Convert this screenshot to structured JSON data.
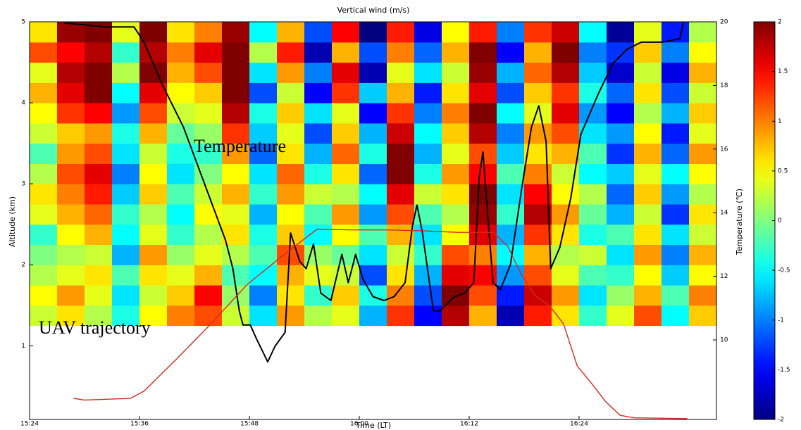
{
  "chart_data": {
    "type": "heatmap",
    "title": "Vertical wind (m/s)",
    "xlabel": "Time (LT)",
    "ylabel": "Altitude (km)",
    "y2label": "Temperature (℃)",
    "colormap": "jet",
    "xlim": [
      924,
      999
    ],
    "xticks": [
      {
        "value": 924,
        "label": "15:24"
      },
      {
        "value": 936,
        "label": "15:36"
      },
      {
        "value": 948,
        "label": "15:48"
      },
      {
        "value": 960,
        "label": "16:00"
      },
      {
        "value": 972,
        "label": "16:12"
      },
      {
        "value": 984,
        "label": "16:24"
      }
    ],
    "ylim": [
      0.09,
      5
    ],
    "yticks": [
      1,
      2,
      3,
      4,
      5
    ],
    "y2lim": [
      7.5,
      20
    ],
    "y2ticks": [
      10,
      12,
      14,
      16,
      18,
      20
    ],
    "clim": [
      -2,
      2
    ],
    "cticks": [
      -2,
      -1.5,
      -1,
      -0.5,
      0,
      0.5,
      1,
      1.5,
      2
    ],
    "x_edges": [
      924,
      927,
      930,
      933,
      936,
      939,
      942,
      945,
      948,
      951,
      954,
      957,
      960,
      963,
      966,
      969,
      972,
      975,
      978,
      981,
      984,
      987,
      990,
      993,
      996,
      999
    ],
    "y_edges": [
      1.25,
      1.5,
      1.75,
      2,
      2.25,
      2.5,
      2.75,
      3,
      3.25,
      3.5,
      3.75,
      4,
      4.25,
      4.5,
      4.75,
      5
    ],
    "z": [
      [
        0.3,
        0.5,
        0.2,
        0.0,
        -0.3,
        0.4,
        0.6,
        0.2,
        -0.2,
        0.3,
        0.5,
        0.8,
        0.4,
        1.2,
        0.6
      ],
      [
        0.6,
        0.9,
        0.4,
        0.2,
        0.5,
        0.8,
        1.0,
        1.2,
        0.9,
        0.7,
        1.3,
        1.6,
        1.8,
        1.5,
        1.9
      ],
      [
        0.2,
        0.4,
        0.6,
        0.3,
        0.8,
        1.1,
        1.4,
        1.6,
        1.2,
        0.9,
        1.5,
        2.0,
        2.0,
        1.8,
        2.0
      ],
      [
        -0.4,
        -0.6,
        -0.2,
        -0.8,
        -0.5,
        -0.3,
        -0.7,
        -1.0,
        -0.6,
        -0.4,
        -0.9,
        -0.5,
        0.2,
        -0.3,
        0.4
      ],
      [
        0.5,
        0.3,
        0.6,
        0.9,
        0.4,
        0.2,
        0.7,
        0.5,
        0.3,
        0.8,
        1.2,
        1.6,
        2.0,
        1.8,
        2.0
      ],
      [
        1.0,
        0.7,
        0.4,
        0.1,
        -0.3,
        -0.5,
        -0.2,
        -0.6,
        -0.4,
        -0.1,
        0.3,
        0.5,
        0.8,
        1.0,
        0.6
      ],
      [
        1.2,
        1.5,
        0.8,
        0.4,
        0.2,
        0.5,
        0.3,
        0.0,
        -0.3,
        0.1,
        0.4,
        0.7,
        1.2,
        1.6,
        1.0
      ],
      [
        0.3,
        0.1,
        -0.2,
        0.2,
        0.6,
        0.4,
        0.8,
        0.5,
        0.9,
        1.3,
        1.8,
        2.0,
        2.0,
        2.0,
        1.9
      ],
      [
        -0.6,
        -1.0,
        -0.5,
        -0.2,
        -0.4,
        -0.8,
        -0.3,
        -0.6,
        -1.1,
        -0.7,
        -0.4,
        -1.2,
        -0.6,
        0.2,
        -0.5
      ],
      [
        0.9,
        0.6,
        0.8,
        1.2,
        0.7,
        0.5,
        0.9,
        1.1,
        0.6,
        0.4,
        0.7,
        0.3,
        0.9,
        1.4,
        0.8
      ],
      [
        0.2,
        -0.3,
        0.4,
        0.1,
        -0.5,
        -0.2,
        0.3,
        -0.4,
        -0.8,
        -1.2,
        -0.6,
        -1.5,
        -1.0,
        -1.8,
        -1.2
      ],
      [
        0.4,
        0.7,
        0.3,
        -0.1,
        0.5,
        0.9,
        0.2,
        0.6,
        1.1,
        0.7,
        0.4,
        1.3,
        1.6,
        0.8,
        1.5
      ],
      [
        -0.8,
        -0.4,
        -1.2,
        -0.6,
        -0.2,
        -0.9,
        -0.5,
        -1.1,
        -0.4,
        -0.8,
        -1.5,
        -0.7,
        -1.8,
        -1.2,
        -2.0
      ],
      [
        1.3,
        1.0,
        0.6,
        0.3,
        0.8,
        1.2,
        1.6,
        2.0,
        2.0,
        1.7,
        1.3,
        0.8,
        0.4,
        1.0,
        1.4
      ],
      [
        -1.5,
        -1.2,
        -0.8,
        -0.3,
        -0.6,
        -0.2,
        0.3,
        -0.4,
        -0.8,
        -0.5,
        -1.0,
        -1.4,
        -0.6,
        -1.1,
        -1.6
      ],
      [
        1.8,
        2.0,
        1.6,
        1.2,
        0.5,
        0.2,
        0.6,
        0.9,
        0.4,
        0.7,
        1.0,
        0.6,
        0.3,
        0.8,
        0.5
      ],
      [
        0.8,
        1.2,
        1.5,
        1.0,
        1.6,
        1.9,
        2.0,
        1.5,
        1.2,
        1.8,
        2.0,
        1.6,
        1.9,
        2.0,
        1.4
      ],
      [
        -1.8,
        -1.4,
        -0.9,
        -0.5,
        -0.8,
        -0.3,
        -0.6,
        -0.2,
        -0.7,
        -1.0,
        -0.5,
        -1.2,
        -0.8,
        -1.5,
        -1.0
      ],
      [
        1.4,
        1.7,
        1.2,
        0.8,
        1.3,
        1.8,
        1.5,
        1.0,
        0.6,
        0.9,
        0.4,
        0.7,
        1.1,
        0.8,
        1.3
      ],
      [
        0.6,
        0.9,
        0.4,
        0.2,
        0.6,
        0.9,
        0.5,
        0.3,
        0.8,
        1.2,
        1.6,
        1.3,
        1.8,
        2.0,
        1.7
      ],
      [
        -0.3,
        -0.6,
        -0.2,
        0.3,
        -0.4,
        -0.1,
        0.2,
        -0.5,
        -0.2,
        -0.6,
        -0.9,
        -0.4,
        -0.7,
        -1.0,
        -0.5
      ],
      [
        0.4,
        0.1,
        -0.3,
        -0.6,
        -0.2,
        -0.8,
        -1.1,
        -0.7,
        -1.3,
        -0.9,
        -1.5,
        -1.1,
        -1.7,
        -1.3,
        -1.9
      ],
      [
        1.2,
        0.8,
        0.5,
        0.9,
        0.6,
        0.3,
        0.7,
        0.4,
        0.8,
        0.5,
        0.2,
        0.6,
        0.3,
        0.7,
        0.4
      ],
      [
        -0.5,
        -0.2,
        -0.7,
        -1.0,
        -0.6,
        -1.3,
        -0.9,
        -0.5,
        -1.1,
        -1.4,
        -0.8,
        -1.2,
        -1.6,
        -1.0,
        -1.4
      ],
      [
        0.7,
        1.0,
        0.5,
        0.8,
        0.3,
        0.6,
        0.2,
        0.5,
        0.9,
        0.4,
        0.7,
        0.3,
        0.8,
        0.5,
        0.2
      ]
    ],
    "series": [
      {
        "name": "Temperature",
        "color": "#000000",
        "axis": "y2",
        "x": [
          927.8,
          932.3,
          935.4,
          936.5,
          938.5,
          940.8,
          943.1,
          945.4,
          946.2,
          946.9,
          947.3,
          948.1,
          948.8,
          950.0,
          950.8,
          951.9,
          952.5,
          953.5,
          954.2,
          955.0,
          955.8,
          956.9,
          958.1,
          958.8,
          959.6,
          960.4,
          961.5,
          962.7,
          963.8,
          965.0,
          965.8,
          966.3,
          966.9,
          968.1,
          968.8,
          970.4,
          971.5,
          972.5,
          973.1,
          973.5,
          974.0,
          974.6,
          975.4,
          976.5,
          977.7,
          978.8,
          979.6,
          980.4,
          980.9,
          981.9,
          983.1,
          984.2,
          986.2,
          987.7,
          989.2,
          990.8,
          993.1,
          995.0,
          995.4
        ],
        "values": [
          19.96,
          19.84,
          19.84,
          19.36,
          18.02,
          16.69,
          14.91,
          13.13,
          12.24,
          10.91,
          10.47,
          10.47,
          10.02,
          9.31,
          9.8,
          10.24,
          13.36,
          12.47,
          12.24,
          13.02,
          11.47,
          11.24,
          12.69,
          11.8,
          12.69,
          11.91,
          11.36,
          11.24,
          11.36,
          11.8,
          13.58,
          14.24,
          13.36,
          10.91,
          10.91,
          11.36,
          11.47,
          11.8,
          15.13,
          15.91,
          14.02,
          11.8,
          11.58,
          12.36,
          14.69,
          16.69,
          17.36,
          16.24,
          12.24,
          12.91,
          14.47,
          16.47,
          17.8,
          18.69,
          19.13,
          19.36,
          19.36,
          19.47,
          20.0
        ]
      },
      {
        "name": "UAV trajectory",
        "color": "#d42a1e",
        "x": [
          928.8,
          930.0,
          935.0,
          936.5,
          940.0,
          943.8,
          947.7,
          951.5,
          955.4,
          959.2,
          963.1,
          966.9,
          970.8,
          974.6,
          976.2,
          977.7,
          979.2,
          980.8,
          982.3,
          983.8,
          985.4,
          986.9,
          988.5,
          990.0,
          995.8
        ],
        "values": [
          0.35,
          0.33,
          0.35,
          0.44,
          0.83,
          1.27,
          1.75,
          2.1,
          2.44,
          2.43,
          2.43,
          2.42,
          2.4,
          2.4,
          2.23,
          1.88,
          1.62,
          1.49,
          1.27,
          0.75,
          0.53,
          0.31,
          0.14,
          0.11,
          0.1
        ]
      }
    ]
  }
}
